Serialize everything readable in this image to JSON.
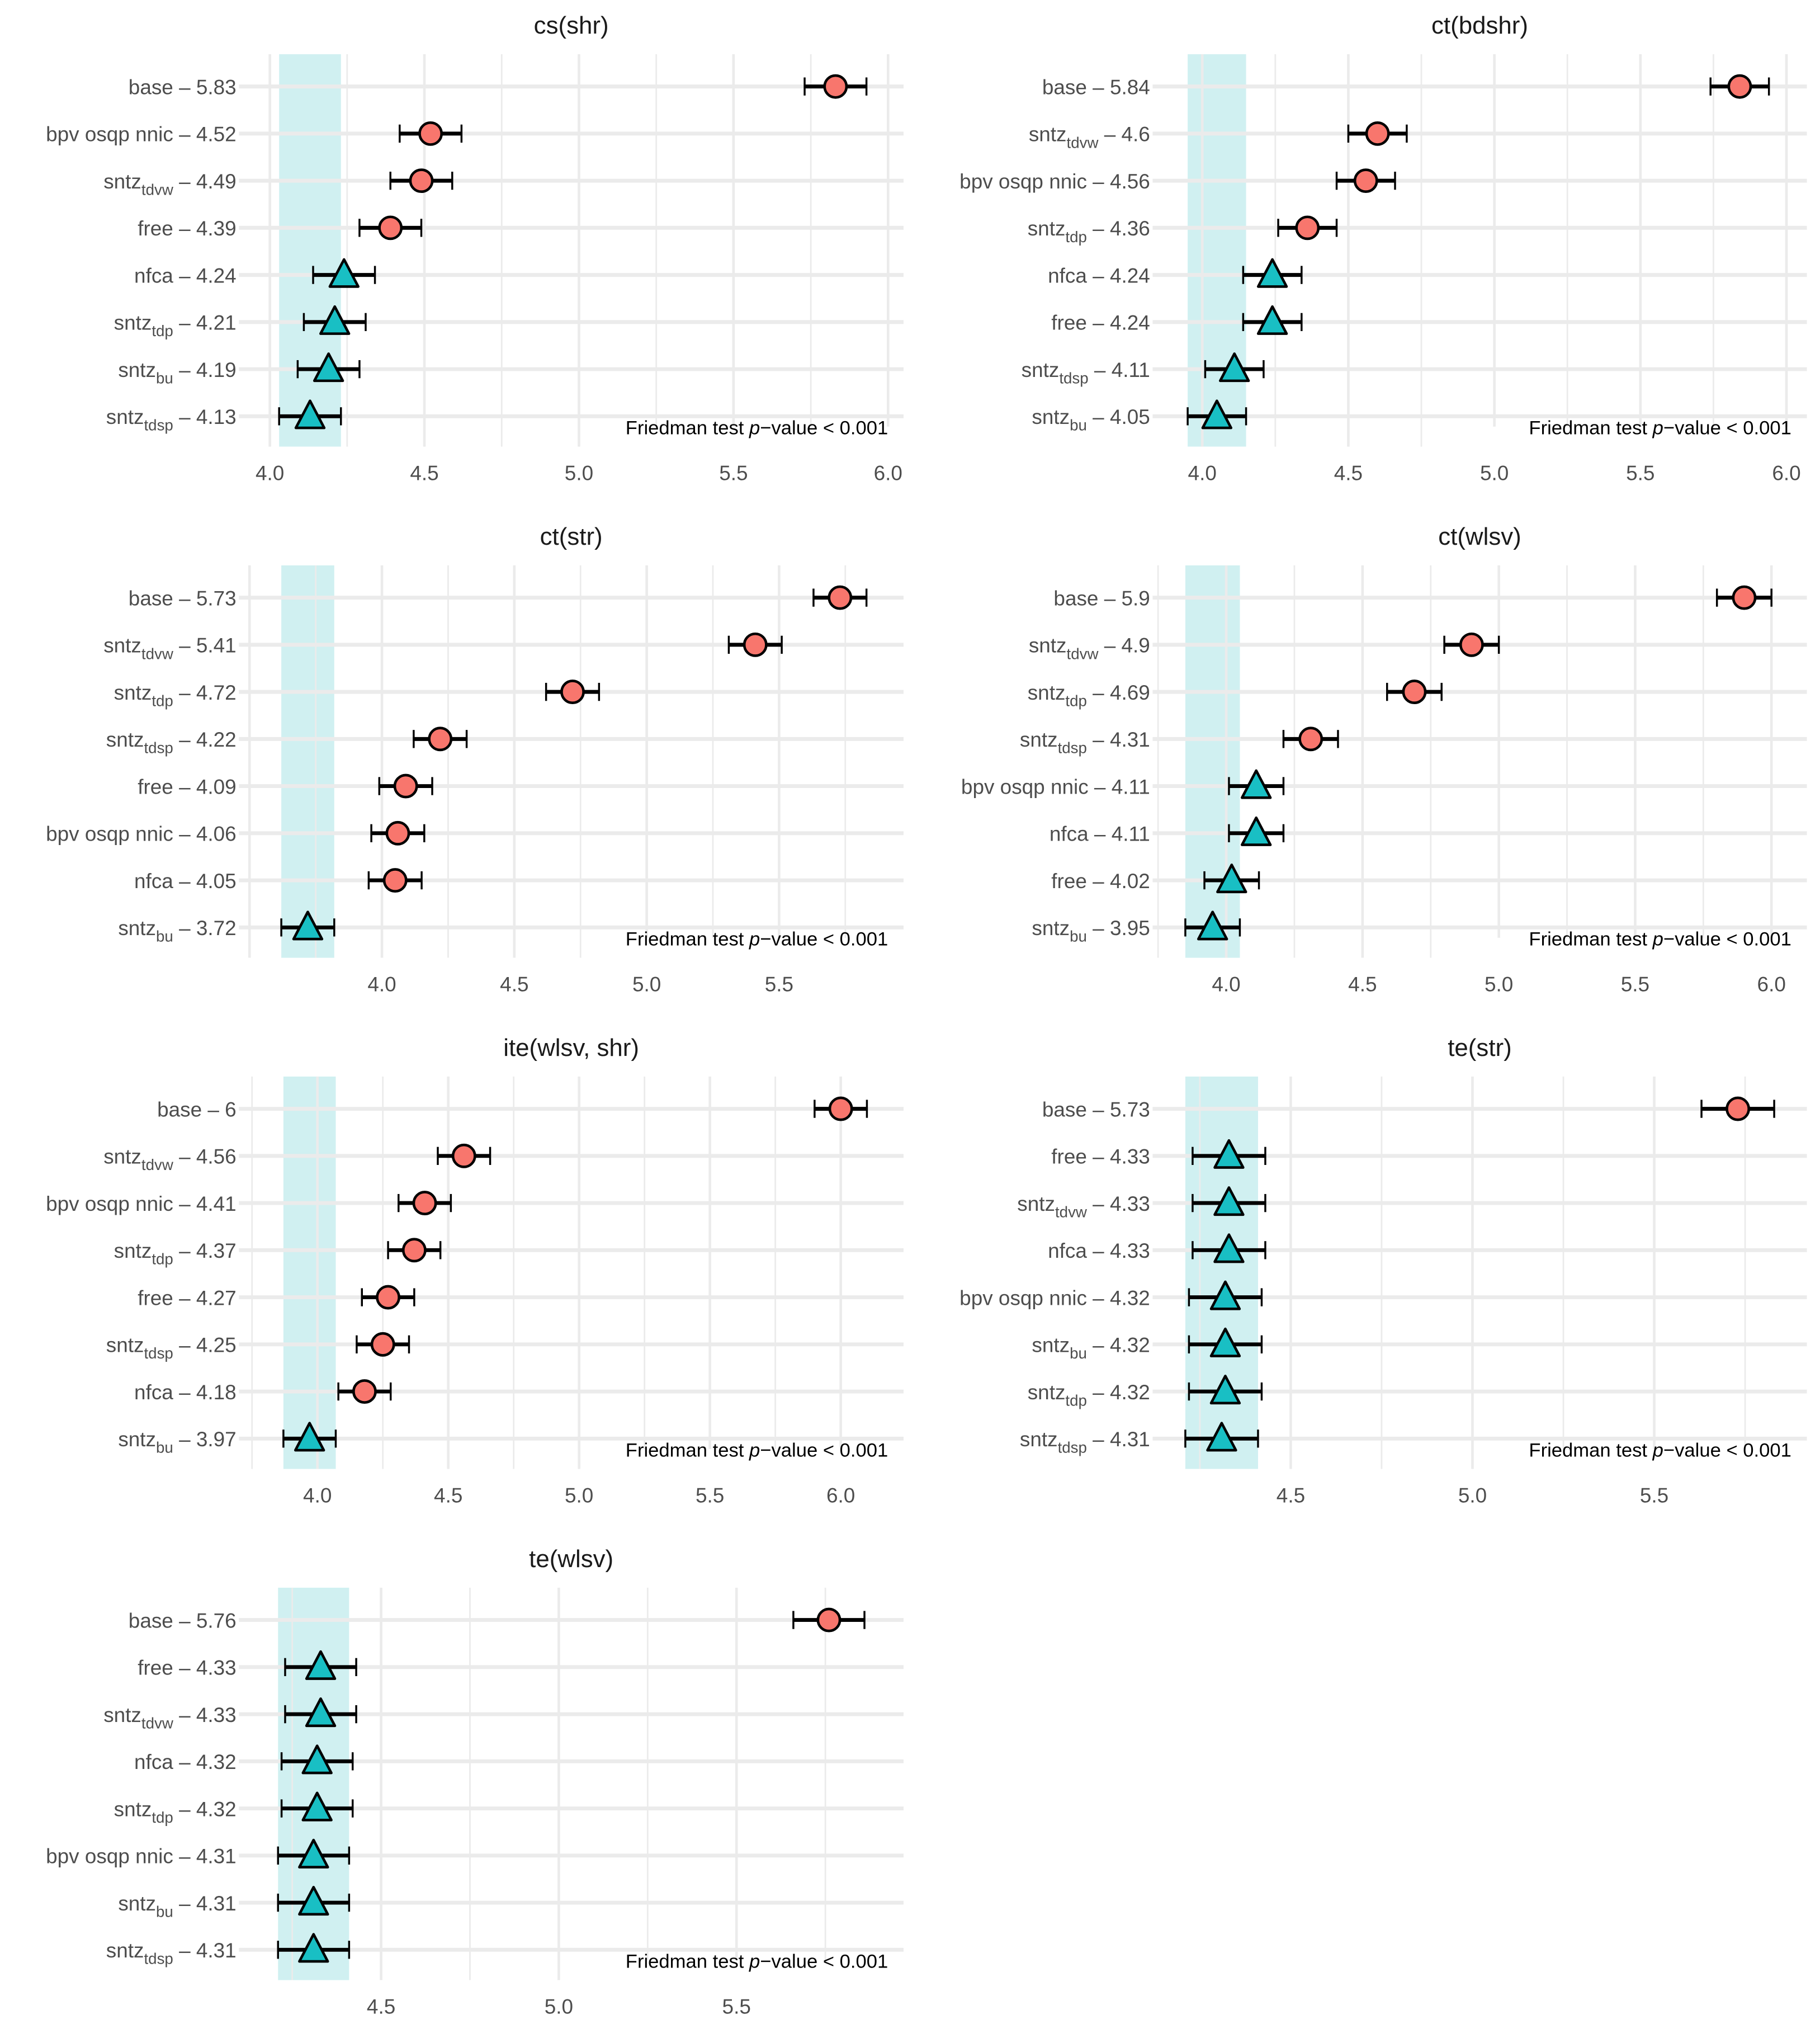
{
  "chart_data": [
    {
      "type": "scatter",
      "title": "cs(shr)",
      "xlim": [
        3.9,
        6.05
      ],
      "xticks": [
        "4.0",
        "4.5",
        "5.0",
        "5.5",
        "6.0"
      ],
      "ci_halfwidth": 0.1,
      "items": [
        {
          "name": "base",
          "sub": "",
          "value": 5.83,
          "group": "worse"
        },
        {
          "name": "bpv osqp nnic",
          "sub": "",
          "value": 4.52,
          "group": "worse"
        },
        {
          "name": "sntz",
          "sub": "tdvw",
          "value": 4.49,
          "group": "worse"
        },
        {
          "name": "free",
          "sub": "",
          "value": 4.39,
          "group": "worse"
        },
        {
          "name": "nfca",
          "sub": "",
          "value": 4.24,
          "group": "best"
        },
        {
          "name": "sntz",
          "sub": "tdp",
          "value": 4.21,
          "group": "best"
        },
        {
          "name": "sntz",
          "sub": "bu",
          "value": 4.19,
          "group": "best"
        },
        {
          "name": "sntz",
          "sub": "tdsp",
          "value": 4.13,
          "group": "best"
        }
      ]
    },
    {
      "type": "scatter",
      "title": "ct(bdshr)",
      "xlim": [
        3.83,
        6.07
      ],
      "xticks": [
        "4.0",
        "4.5",
        "5.0",
        "5.5",
        "6.0"
      ],
      "ci_halfwidth": 0.1,
      "items": [
        {
          "name": "base",
          "sub": "",
          "value": 5.84,
          "group": "worse"
        },
        {
          "name": "sntz",
          "sub": "tdvw",
          "value": 4.6,
          "group": "worse"
        },
        {
          "name": "bpv osqp nnic",
          "sub": "",
          "value": 4.56,
          "group": "worse"
        },
        {
          "name": "sntz",
          "sub": "tdp",
          "value": 4.36,
          "group": "worse"
        },
        {
          "name": "nfca",
          "sub": "",
          "value": 4.24,
          "group": "best"
        },
        {
          "name": "free",
          "sub": "",
          "value": 4.24,
          "group": "best"
        },
        {
          "name": "sntz",
          "sub": "tdsp",
          "value": 4.11,
          "group": "best"
        },
        {
          "name": "sntz",
          "sub": "bu",
          "value": 4.05,
          "group": "best"
        }
      ]
    },
    {
      "type": "scatter",
      "title": "ct(str)",
      "xlim": [
        3.46,
        5.97
      ],
      "xticks": [
        "4.0",
        "4.5",
        "5.0",
        "5.5"
      ],
      "ci_halfwidth": 0.1,
      "items": [
        {
          "name": "base",
          "sub": "",
          "value": 5.73,
          "group": "worse"
        },
        {
          "name": "sntz",
          "sub": "tdvw",
          "value": 5.41,
          "group": "worse"
        },
        {
          "name": "sntz",
          "sub": "tdp",
          "value": 4.72,
          "group": "worse"
        },
        {
          "name": "sntz",
          "sub": "tdsp",
          "value": 4.22,
          "group": "worse"
        },
        {
          "name": "free",
          "sub": "",
          "value": 4.09,
          "group": "worse"
        },
        {
          "name": "bpv osqp nnic",
          "sub": "",
          "value": 4.06,
          "group": "worse"
        },
        {
          "name": "nfca",
          "sub": "",
          "value": 4.05,
          "group": "worse"
        },
        {
          "name": "sntz",
          "sub": "bu",
          "value": 3.72,
          "group": "best"
        }
      ]
    },
    {
      "type": "scatter",
      "title": "ct(wlsv)",
      "xlim": [
        3.73,
        6.13
      ],
      "xticks": [
        "4.0",
        "4.5",
        "5.0",
        "5.5",
        "6.0"
      ],
      "ci_halfwidth": 0.1,
      "items": [
        {
          "name": "base",
          "sub": "",
          "value": 5.9,
          "group": "worse"
        },
        {
          "name": "sntz",
          "sub": "tdvw",
          "value": 4.9,
          "group": "worse"
        },
        {
          "name": "sntz",
          "sub": "tdp",
          "value": 4.69,
          "group": "worse"
        },
        {
          "name": "sntz",
          "sub": "tdsp",
          "value": 4.31,
          "group": "worse"
        },
        {
          "name": "bpv osqp nnic",
          "sub": "",
          "value": 4.11,
          "group": "best"
        },
        {
          "name": "nfca",
          "sub": "",
          "value": 4.11,
          "group": "best"
        },
        {
          "name": "free",
          "sub": "",
          "value": 4.02,
          "group": "best"
        },
        {
          "name": "sntz",
          "sub": "bu",
          "value": 3.95,
          "group": "best"
        }
      ]
    },
    {
      "type": "scatter",
      "title": "ite(wlsv, shr)",
      "xlim": [
        3.7,
        6.24
      ],
      "xticks": [
        "4.0",
        "4.5",
        "5.0",
        "5.5",
        "6.0"
      ],
      "ci_halfwidth": 0.1,
      "items": [
        {
          "name": "base",
          "sub": "",
          "value": 6,
          "label": "6",
          "group": "worse"
        },
        {
          "name": "sntz",
          "sub": "tdvw",
          "value": 4.56,
          "group": "worse"
        },
        {
          "name": "bpv osqp nnic",
          "sub": "",
          "value": 4.41,
          "group": "worse"
        },
        {
          "name": "sntz",
          "sub": "tdp",
          "value": 4.37,
          "group": "worse"
        },
        {
          "name": "free",
          "sub": "",
          "value": 4.27,
          "group": "worse"
        },
        {
          "name": "sntz",
          "sub": "tdsp",
          "value": 4.25,
          "group": "worse"
        },
        {
          "name": "nfca",
          "sub": "",
          "value": 4.18,
          "group": "worse"
        },
        {
          "name": "sntz",
          "sub": "bu",
          "value": 3.97,
          "group": "best"
        }
      ]
    },
    {
      "type": "scatter",
      "title": "te(str)",
      "xlim": [
        4.12,
        5.92
      ],
      "xticks": [
        "4.5",
        "5.0",
        "5.5"
      ],
      "ci_halfwidth": 0.1,
      "items": [
        {
          "name": "base",
          "sub": "",
          "value": 5.73,
          "group": "worse"
        },
        {
          "name": "free",
          "sub": "",
          "value": 4.33,
          "group": "best"
        },
        {
          "name": "sntz",
          "sub": "tdvw",
          "value": 4.33,
          "group": "best"
        },
        {
          "name": "nfca",
          "sub": "",
          "value": 4.33,
          "group": "best"
        },
        {
          "name": "bpv osqp nnic",
          "sub": "",
          "value": 4.32,
          "group": "best"
        },
        {
          "name": "sntz",
          "sub": "bu",
          "value": 4.32,
          "group": "best"
        },
        {
          "name": "sntz",
          "sub": "tdp",
          "value": 4.32,
          "group": "best"
        },
        {
          "name": "sntz",
          "sub": "tdsp",
          "value": 4.31,
          "group": "best"
        }
      ]
    },
    {
      "type": "scatter",
      "title": "te(wlsv)",
      "xlim": [
        4.1,
        5.97
      ],
      "xticks": [
        "4.5",
        "5.0",
        "5.5"
      ],
      "ci_halfwidth": 0.1,
      "items": [
        {
          "name": "base",
          "sub": "",
          "value": 5.76,
          "group": "worse"
        },
        {
          "name": "free",
          "sub": "",
          "value": 4.33,
          "group": "best"
        },
        {
          "name": "sntz",
          "sub": "tdvw",
          "value": 4.33,
          "group": "best"
        },
        {
          "name": "nfca",
          "sub": "",
          "value": 4.32,
          "group": "best"
        },
        {
          "name": "sntz",
          "sub": "tdp",
          "value": 4.32,
          "group": "best"
        },
        {
          "name": "bpv osqp nnic",
          "sub": "",
          "value": 4.31,
          "group": "best"
        },
        {
          "name": "sntz",
          "sub": "bu",
          "value": 4.31,
          "group": "best"
        },
        {
          "name": "sntz",
          "sub": "tdsp",
          "value": 4.31,
          "group": "best"
        }
      ]
    }
  ],
  "annotation": "Friedman test p−value < 0.001",
  "annotation_parts": {
    "pre": "Friedman test ",
    "italic": "p",
    "post": "−value < 0.001"
  },
  "colors": {
    "worse": "#F8766D",
    "best": "#19BFC4",
    "band": "#D0F0F1",
    "grid": "#EBEBEB"
  }
}
